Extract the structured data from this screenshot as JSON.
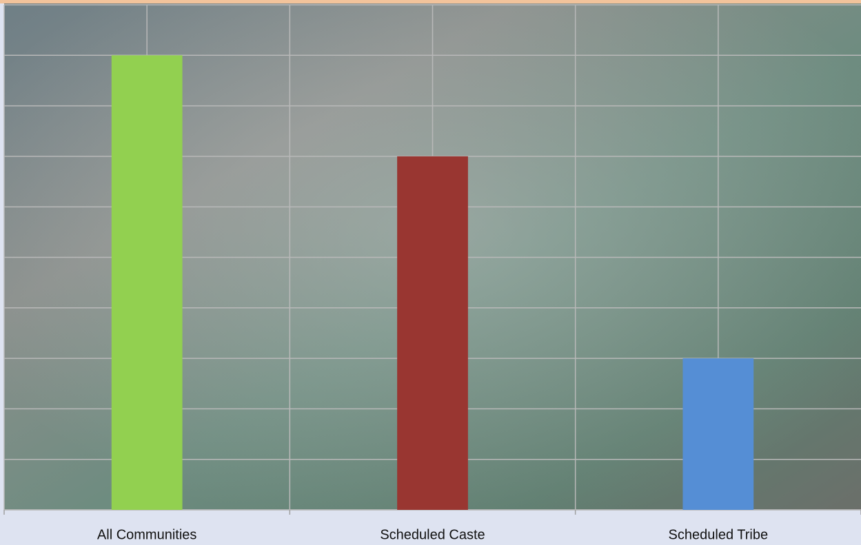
{
  "chart_data": {
    "type": "bar",
    "categories": [
      "All Communities",
      "Scheduled Caste",
      "Scheduled Tribe"
    ],
    "values": [
      9,
      7,
      3
    ],
    "colors": [
      "#92d050",
      "#993631",
      "#558ed5"
    ],
    "ylim": [
      0,
      10
    ],
    "yticks": [
      0,
      1,
      2,
      3,
      4,
      5,
      6,
      7,
      8,
      9,
      10
    ],
    "grid": true
  }
}
